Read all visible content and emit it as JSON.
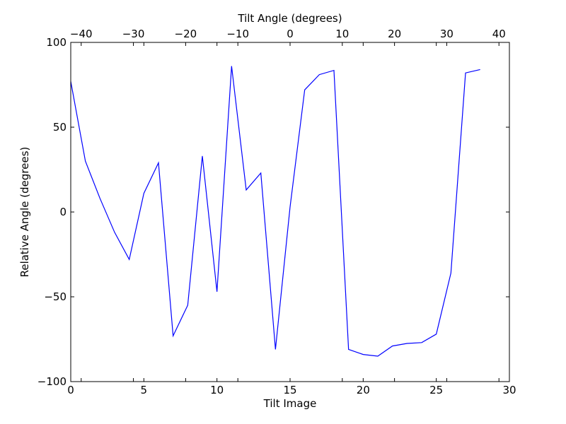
{
  "chart_data": {
    "type": "line",
    "title": "",
    "xlabel": "Tilt Image",
    "ylabel": "Relative Angle (degrees)",
    "x2label": "Tilt Angle (degrees)",
    "xlim": [
      0,
      30
    ],
    "ylim": [
      -100,
      100
    ],
    "x2lim": [
      -42,
      42
    ],
    "xticks": [
      0,
      5,
      10,
      15,
      20,
      25,
      30
    ],
    "yticks": [
      -100,
      -50,
      0,
      50,
      100
    ],
    "x2ticks": [
      -40,
      -30,
      -20,
      -10,
      0,
      10,
      20,
      30,
      40
    ],
    "xtick_labels": [
      "0",
      "5",
      "10",
      "15",
      "20",
      "25",
      "30"
    ],
    "ytick_labels": [
      "−100",
      "−50",
      "0",
      "50",
      "100"
    ],
    "x2tick_labels": [
      "−40",
      "−30",
      "−20",
      "−10",
      "0",
      "10",
      "20",
      "30",
      "40"
    ],
    "grid": false,
    "line_color": "#0000ff",
    "series": [
      {
        "x": [
          0,
          1,
          2,
          3,
          4,
          5,
          6,
          7,
          8,
          9,
          10,
          11,
          12,
          13,
          14,
          15,
          16,
          17,
          18,
          19,
          20,
          21,
          22,
          23,
          24,
          25,
          26,
          27,
          28
        ],
        "values": [
          77,
          30,
          8,
          -12,
          -28,
          11,
          29,
          -73,
          -55,
          33,
          -47,
          86,
          13,
          23,
          -81,
          3,
          72,
          81,
          83.5,
          -81,
          -84,
          -85,
          -79,
          -77.5,
          -77,
          -72,
          -36,
          82,
          84
        ]
      }
    ]
  }
}
